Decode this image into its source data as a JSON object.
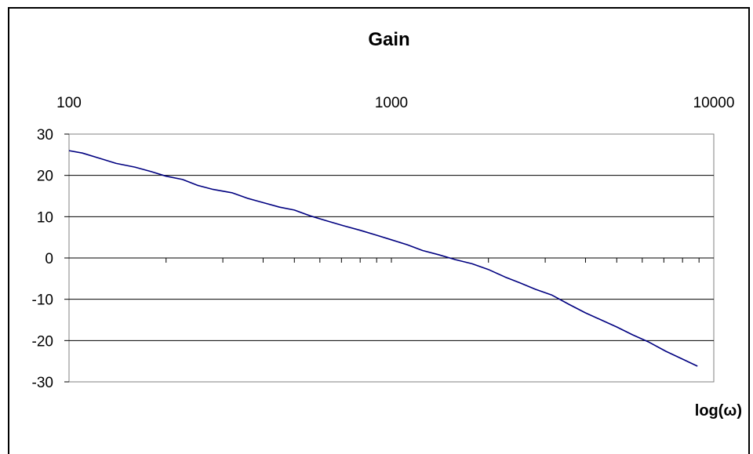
{
  "chart_data": {
    "type": "line",
    "title": "Gain",
    "xlabel": "log(ω)",
    "ylabel": "",
    "x_scale": "log",
    "xlim": [
      100,
      10000
    ],
    "ylim": [
      -30,
      30
    ],
    "x_ticks": [
      "100",
      "1000",
      "10000"
    ],
    "x_tick_values": [
      100,
      1000,
      10000
    ],
    "y_ticks": [
      "30",
      "20",
      "10",
      "0",
      "-10",
      "-20",
      "-30"
    ],
    "y_tick_values": [
      30,
      20,
      10,
      0,
      -10,
      -20,
      -30
    ],
    "grid": "horizontal",
    "series": [
      {
        "color": "#000080",
        "x": [
          100,
          110,
          125,
          140,
          160,
          180,
          200,
          225,
          250,
          280,
          320,
          360,
          400,
          450,
          500,
          560,
          630,
          710,
          800,
          900,
          1000,
          1120,
          1250,
          1400,
          1580,
          1780,
          2000,
          2250,
          2500,
          2800,
          3150,
          3550,
          4000,
          4500,
          5000,
          5600,
          6300,
          7100,
          8000,
          8900
        ],
        "y": [
          26,
          25.4,
          24.1,
          22.9,
          22.0,
          20.9,
          19.8,
          19.0,
          17.6,
          16.6,
          15.8,
          14.4,
          13.4,
          12.3,
          11.6,
          10.2,
          9.0,
          7.8,
          6.7,
          5.5,
          4.4,
          3.2,
          1.8,
          0.8,
          -0.4,
          -1.4,
          -2.8,
          -4.6,
          -6.0,
          -7.6,
          -9.0,
          -11.2,
          -13.3,
          -15.1,
          -16.7,
          -18.6,
          -20.4,
          -22.6,
          -24.5,
          -26.2
        ]
      }
    ]
  }
}
